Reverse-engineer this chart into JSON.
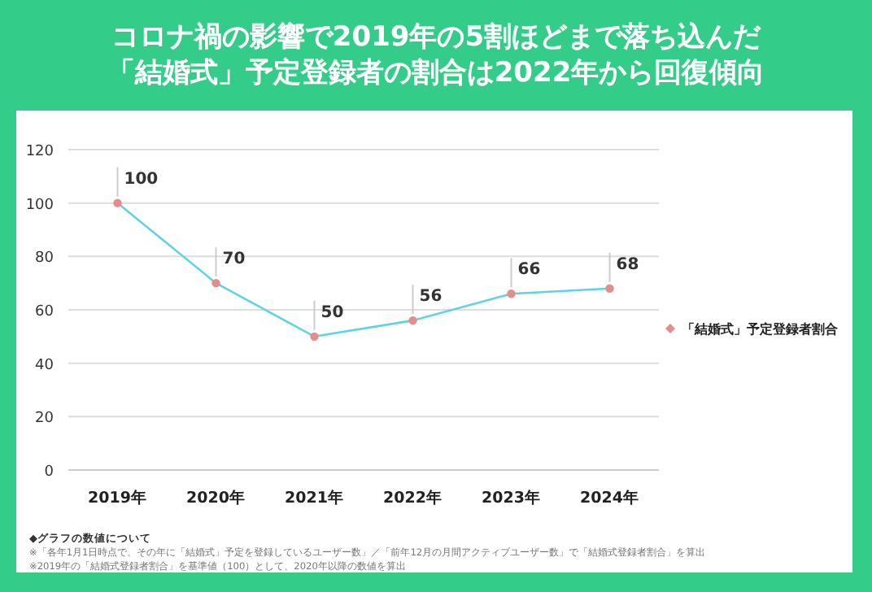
{
  "chart_data": {
    "type": "line",
    "title": "コロナ禍の影響で2019年の5割ほどまで落ち込んだ「結婚式」予定登録者の割合は2022年から回復傾向",
    "categories": [
      "2019年",
      "2020年",
      "2021年",
      "2022年",
      "2023年",
      "2024年"
    ],
    "series": [
      {
        "name": "「結婚式」予定登録者割合",
        "color": "#5fd3e3",
        "values": [
          100,
          70,
          50,
          56,
          66,
          68
        ]
      }
    ],
    "ylim": [
      0,
      120
    ],
    "yticks": [
      0,
      20,
      40,
      60,
      80,
      100,
      120
    ],
    "grid": "y",
    "legend": "right",
    "marker": "circle",
    "line_style": "solid",
    "data_labels": true,
    "annotations": [
      "◆グラフの数値について",
      "※「各年1月1日時点で、その年に「結婚式」予定を登録しているユーザー数」／「前年12月の月間アクティブユーザー数」で「結婚式登録者割合」を算出",
      "※2019年の「結婚式登録者割合」を基準値（100）として、2020年以降の数値を算出"
    ]
  }
}
